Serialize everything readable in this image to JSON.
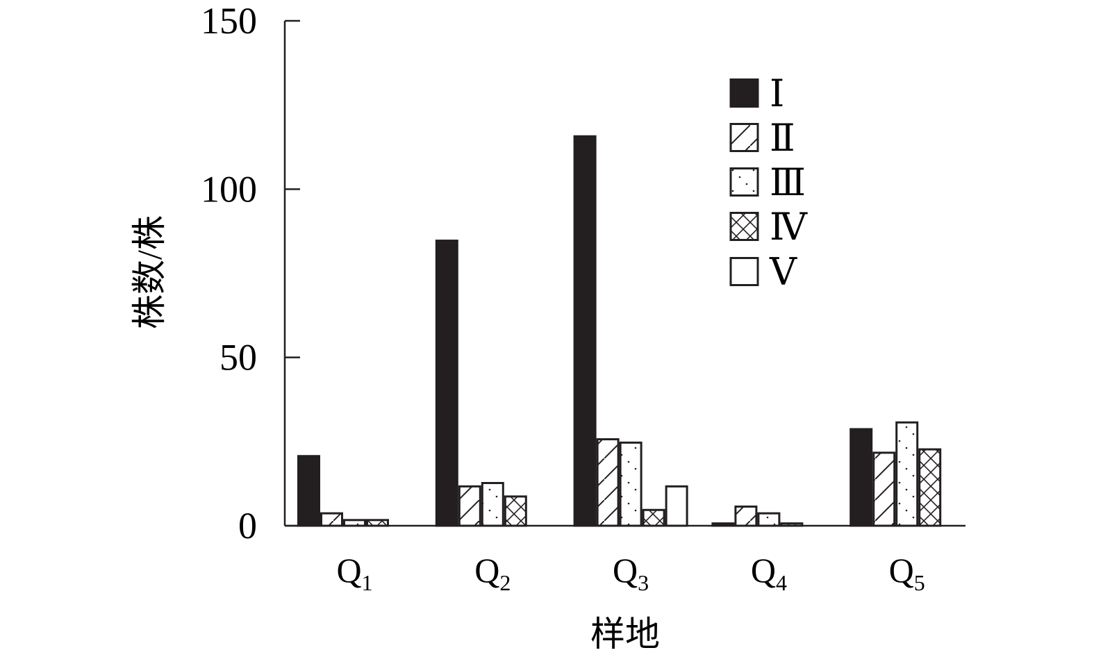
{
  "chart_data": {
    "type": "bar",
    "title": "",
    "xlabel": "样地",
    "ylabel": "株数/株",
    "ylim": [
      0,
      150
    ],
    "yticks": [
      "0",
      "50",
      "100",
      "150"
    ],
    "ytick_values": [
      0,
      50,
      100,
      150
    ],
    "categories": [
      {
        "main": "Q",
        "sub": "1"
      },
      {
        "main": "Q",
        "sub": "2"
      },
      {
        "main": "Q",
        "sub": "3"
      },
      {
        "main": "Q",
        "sub": "4"
      },
      {
        "main": "Q",
        "sub": "5"
      }
    ],
    "legend_position": "top-right",
    "grid": false,
    "series": [
      {
        "name": "Ⅰ",
        "pattern": "solid-black",
        "values": [
          21,
          85,
          116,
          1,
          29
        ]
      },
      {
        "name": "Ⅱ",
        "pattern": "diagonal-hatch",
        "values": [
          4,
          12,
          26,
          6,
          22
        ]
      },
      {
        "name": "Ⅲ",
        "pattern": "dotted-diagonal",
        "values": [
          2,
          13,
          25,
          4,
          31
        ]
      },
      {
        "name": "Ⅳ",
        "pattern": "cross-hatch",
        "values": [
          2,
          9,
          5,
          1,
          23
        ]
      },
      {
        "name": "Ⅴ",
        "pattern": "white",
        "values": [
          0,
          0,
          12,
          0,
          0
        ]
      }
    ],
    "colors": {
      "bar_fill": "#231f20",
      "stroke": "#231f20",
      "background": "#ffffff"
    }
  }
}
